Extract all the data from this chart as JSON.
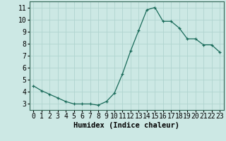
{
  "x": [
    0,
    1,
    2,
    3,
    4,
    5,
    6,
    7,
    8,
    9,
    10,
    11,
    12,
    13,
    14,
    15,
    16,
    17,
    18,
    19,
    20,
    21,
    22,
    23
  ],
  "y": [
    4.5,
    4.1,
    3.8,
    3.5,
    3.2,
    3.0,
    3.0,
    3.0,
    2.9,
    3.2,
    3.9,
    5.5,
    7.4,
    9.1,
    10.8,
    11.0,
    9.85,
    9.85,
    9.3,
    8.4,
    8.4,
    7.9,
    7.9,
    7.3
  ],
  "xlabel": "Humidex (Indice chaleur)",
  "ylim": [
    2.5,
    11.5
  ],
  "xlim": [
    -0.5,
    23.5
  ],
  "bg_color": "#cce8e4",
  "grid_color": "#b0d4cf",
  "line_color": "#1a6b5a",
  "marker_color": "#1a6b5a",
  "xlabel_fontsize": 7.5,
  "tick_fontsize": 7
}
